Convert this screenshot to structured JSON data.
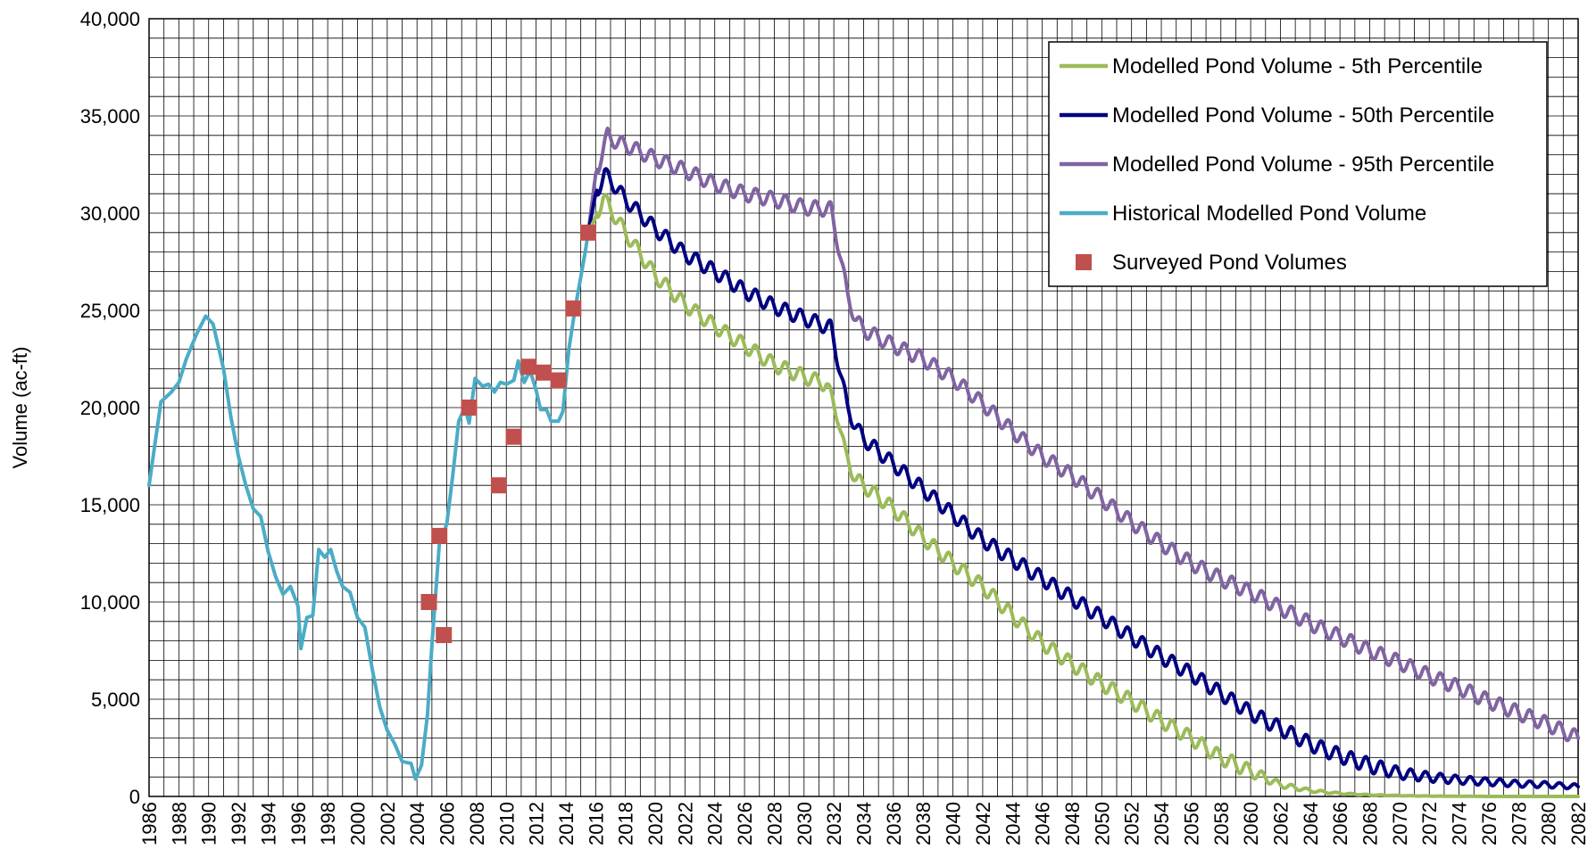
{
  "chart_data": {
    "type": "line",
    "title": "",
    "xlabel": "",
    "ylabel": "Volume (ac-ft)",
    "xlim": [
      1986,
      2082
    ],
    "ylim": [
      0,
      40000
    ],
    "x_ticks": [
      "1986",
      "1988",
      "1990",
      "1992",
      "1994",
      "1996",
      "1998",
      "2000",
      "2002",
      "2004",
      "2006",
      "2008",
      "2010",
      "2012",
      "2014",
      "2016",
      "2018",
      "2020",
      "2022",
      "2024",
      "2026",
      "2028",
      "2030",
      "2032",
      "2034",
      "2036",
      "2038",
      "2040",
      "2042",
      "2044",
      "2046",
      "2048",
      "2050",
      "2052",
      "2054",
      "2056",
      "2058",
      "2060",
      "2062",
      "2064",
      "2066",
      "2068",
      "2070",
      "2072",
      "2074",
      "2076",
      "2078",
      "2080",
      "2082"
    ],
    "y_ticks": [
      "0",
      "5,000",
      "10,000",
      "15,000",
      "20,000",
      "25,000",
      "30,000",
      "35,000",
      "40,000"
    ],
    "grid": true,
    "legend_position": "top-right",
    "legend": [
      {
        "label": "Modelled Pond Volume - 5th Percentile",
        "color": "#9bbb59",
        "kind": "line"
      },
      {
        "label": "Modelled Pond Volume - 50th Percentile",
        "color": "#000080",
        "kind": "line"
      },
      {
        "label": "Modelled Pond Volume - 95th Percentile",
        "color": "#8064a2",
        "kind": "line"
      },
      {
        "label": "Historical Modelled Pond Volume",
        "color": "#4bacc6",
        "kind": "line"
      },
      {
        "label": "Surveyed Pond Volumes",
        "color": "#c0504d",
        "kind": "marker"
      }
    ],
    "series": [
      {
        "name": "Historical Modelled Pond Volume",
        "color": "#4bacc6",
        "points": [
          [
            1986.0,
            16000
          ],
          [
            1986.8,
            20300
          ],
          [
            1987.5,
            20800
          ],
          [
            1988.0,
            21300
          ],
          [
            1988.5,
            22500
          ],
          [
            1989.2,
            23800
          ],
          [
            1989.8,
            24700
          ],
          [
            1990.3,
            24300
          ],
          [
            1991.0,
            22000
          ],
          [
            1991.5,
            19500
          ],
          [
            1992.0,
            17500
          ],
          [
            1992.5,
            16000
          ],
          [
            1993.0,
            14800
          ],
          [
            1993.5,
            14400
          ],
          [
            1994.0,
            12600
          ],
          [
            1994.5,
            11300
          ],
          [
            1995.0,
            10400
          ],
          [
            1995.5,
            10800
          ],
          [
            1996.0,
            9800
          ],
          [
            1996.2,
            7600
          ],
          [
            1996.6,
            9200
          ],
          [
            1997.0,
            9300
          ],
          [
            1997.4,
            12700
          ],
          [
            1997.8,
            12300
          ],
          [
            1998.2,
            12700
          ],
          [
            1998.6,
            11600
          ],
          [
            1999.0,
            10800
          ],
          [
            1999.5,
            10500
          ],
          [
            2000.0,
            9200
          ],
          [
            2000.5,
            8700
          ],
          [
            2001.0,
            6500
          ],
          [
            2001.5,
            4600
          ],
          [
            2002.0,
            3400
          ],
          [
            2002.5,
            2700
          ],
          [
            2003.0,
            1800
          ],
          [
            2003.6,
            1700
          ],
          [
            2003.9,
            900
          ],
          [
            2004.3,
            1600
          ],
          [
            2004.7,
            4200
          ],
          [
            2005.0,
            7800
          ],
          [
            2005.5,
            13000
          ],
          [
            2006.0,
            14000
          ],
          [
            2006.4,
            16500
          ],
          [
            2006.8,
            19300
          ],
          [
            2007.2,
            20000
          ],
          [
            2007.5,
            19200
          ],
          [
            2007.9,
            21500
          ],
          [
            2008.4,
            21100
          ],
          [
            2008.8,
            21200
          ],
          [
            2009.2,
            20800
          ],
          [
            2009.6,
            21300
          ],
          [
            2010.0,
            21200
          ],
          [
            2010.5,
            21400
          ],
          [
            2010.8,
            22400
          ],
          [
            2011.2,
            21300
          ],
          [
            2011.6,
            21900
          ],
          [
            2012.0,
            20900
          ],
          [
            2012.3,
            19900
          ],
          [
            2012.7,
            19900
          ],
          [
            2013.0,
            19300
          ],
          [
            2013.5,
            19300
          ],
          [
            2013.8,
            19800
          ],
          [
            2014.2,
            23000
          ],
          [
            2014.6,
            25000
          ],
          [
            2015.0,
            26700
          ],
          [
            2015.3,
            28000
          ],
          [
            2015.5,
            29000
          ]
        ]
      },
      {
        "name": "Modelled Pond Volume - 5th Percentile",
        "color": "#9bbb59",
        "points": [
          [
            2015.5,
            29000
          ],
          [
            2016.0,
            29800
          ],
          [
            2016.5,
            30800
          ],
          [
            2017.0,
            30200
          ],
          [
            2018.0,
            29000
          ],
          [
            2020.0,
            26800
          ],
          [
            2022.0,
            25300
          ],
          [
            2024.0,
            24200
          ],
          [
            2026.0,
            23200
          ],
          [
            2028.0,
            22200
          ],
          [
            2030.0,
            21600
          ],
          [
            2031.5,
            21200
          ],
          [
            2032.3,
            19500
          ],
          [
            2032.8,
            17500
          ],
          [
            2033.5,
            16300
          ],
          [
            2034.0,
            16000
          ],
          [
            2036.0,
            14800
          ],
          [
            2038.0,
            13300
          ],
          [
            2040.0,
            12000
          ],
          [
            2042.0,
            10800
          ],
          [
            2044.0,
            9300
          ],
          [
            2046.0,
            7900
          ],
          [
            2048.0,
            6800
          ],
          [
            2050.0,
            5800
          ],
          [
            2052.0,
            4900
          ],
          [
            2054.0,
            3900
          ],
          [
            2056.0,
            3000
          ],
          [
            2058.0,
            2000
          ],
          [
            2060.0,
            1300
          ],
          [
            2062.0,
            600
          ],
          [
            2064.0,
            300
          ],
          [
            2066.0,
            150
          ],
          [
            2068.0,
            80
          ],
          [
            2070.0,
            40
          ],
          [
            2072.0,
            20
          ],
          [
            2074.0,
            10
          ],
          [
            2076.0,
            0
          ],
          [
            2078.0,
            0
          ],
          [
            2080.0,
            0
          ],
          [
            2082.0,
            0
          ]
        ]
      },
      {
        "name": "Modelled Pond Volume - 50th Percentile",
        "color": "#000080",
        "points": [
          [
            2015.5,
            29000
          ],
          [
            2016.0,
            31000
          ],
          [
            2016.6,
            32000
          ],
          [
            2017.2,
            31500
          ],
          [
            2018.0,
            30700
          ],
          [
            2020.0,
            29200
          ],
          [
            2022.0,
            27900
          ],
          [
            2024.0,
            27000
          ],
          [
            2026.0,
            26000
          ],
          [
            2028.0,
            25200
          ],
          [
            2030.0,
            24600
          ],
          [
            2031.8,
            24100
          ],
          [
            2032.4,
            22000
          ],
          [
            2032.9,
            20000
          ],
          [
            2033.5,
            19000
          ],
          [
            2034.0,
            18400
          ],
          [
            2036.0,
            17100
          ],
          [
            2038.0,
            15800
          ],
          [
            2040.0,
            14500
          ],
          [
            2042.0,
            13200
          ],
          [
            2044.0,
            12200
          ],
          [
            2046.0,
            11200
          ],
          [
            2048.0,
            10200
          ],
          [
            2050.0,
            9200
          ],
          [
            2052.0,
            8200
          ],
          [
            2054.0,
            7200
          ],
          [
            2056.0,
            6300
          ],
          [
            2058.0,
            5300
          ],
          [
            2060.0,
            4300
          ],
          [
            2062.0,
            3500
          ],
          [
            2064.0,
            2700
          ],
          [
            2066.0,
            2100
          ],
          [
            2068.0,
            1600
          ],
          [
            2070.0,
            1200
          ],
          [
            2072.0,
            1000
          ],
          [
            2074.0,
            850
          ],
          [
            2076.0,
            750
          ],
          [
            2078.0,
            650
          ],
          [
            2080.0,
            600
          ],
          [
            2082.0,
            500
          ]
        ]
      },
      {
        "name": "Modelled Pond Volume - 95th Percentile",
        "color": "#8064a2",
        "points": [
          [
            2015.5,
            29000
          ],
          [
            2016.0,
            32000
          ],
          [
            2016.8,
            34000
          ],
          [
            2017.5,
            33600
          ],
          [
            2018.0,
            33500
          ],
          [
            2020.0,
            32800
          ],
          [
            2022.0,
            32200
          ],
          [
            2024.0,
            31500
          ],
          [
            2026.0,
            31000
          ],
          [
            2028.0,
            30700
          ],
          [
            2030.0,
            30300
          ],
          [
            2031.8,
            30200
          ],
          [
            2032.4,
            28000
          ],
          [
            2032.9,
            25800
          ],
          [
            2033.5,
            24500
          ],
          [
            2034.0,
            24000
          ],
          [
            2036.0,
            23200
          ],
          [
            2038.0,
            22500
          ],
          [
            2040.0,
            21500
          ],
          [
            2042.0,
            20200
          ],
          [
            2044.0,
            18800
          ],
          [
            2046.0,
            17500
          ],
          [
            2048.0,
            16500
          ],
          [
            2050.0,
            15300
          ],
          [
            2052.0,
            14100
          ],
          [
            2054.0,
            13000
          ],
          [
            2056.0,
            12000
          ],
          [
            2058.0,
            11200
          ],
          [
            2060.0,
            10500
          ],
          [
            2062.0,
            9700
          ],
          [
            2064.0,
            8900
          ],
          [
            2066.0,
            8200
          ],
          [
            2068.0,
            7500
          ],
          [
            2070.0,
            6900
          ],
          [
            2072.0,
            6200
          ],
          [
            2074.0,
            5600
          ],
          [
            2076.0,
            4900
          ],
          [
            2078.0,
            4300
          ],
          [
            2080.0,
            3700
          ],
          [
            2082.0,
            3000
          ]
        ]
      }
    ],
    "markers": {
      "name": "Surveyed Pond Volumes",
      "color": "#c0504d",
      "points": [
        [
          2004.8,
          10000
        ],
        [
          2005.5,
          13400
        ],
        [
          2005.8,
          8300
        ],
        [
          2007.5,
          20000
        ],
        [
          2009.5,
          16000
        ],
        [
          2010.5,
          18500
        ],
        [
          2011.5,
          22100
        ],
        [
          2012.5,
          21800
        ],
        [
          2013.5,
          21400
        ],
        [
          2014.5,
          25100
        ],
        [
          2015.5,
          29000
        ]
      ]
    }
  }
}
